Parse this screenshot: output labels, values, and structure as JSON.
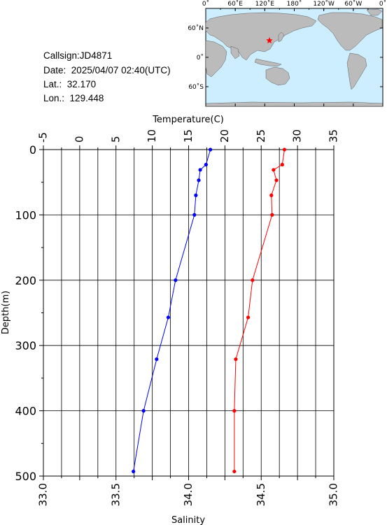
{
  "station": {
    "callsign_label": "Callsign:",
    "callsign": "JD4871",
    "date_label": "Date:",
    "date": "2025/04/07 02:40(UTC)",
    "lat_label": "Lat.:",
    "lat": "32.170",
    "lon_label": "Lon.:",
    "lon": "129.448"
  },
  "map": {
    "lon_ticks": [
      "0˚",
      "60˚E",
      "120˚E",
      "180˚",
      "120˚W",
      "60˚W",
      "0˚"
    ],
    "lat_ticks": [
      "60˚N",
      "0˚",
      "60˚S"
    ],
    "ocean_color": "#cceeff",
    "land_color": "#bbbbbb",
    "marker": "red-star",
    "marker_color": "#ff0000"
  },
  "chart_data": {
    "type": "line",
    "ylabel": "Depth(m)",
    "ylim": [
      500,
      0
    ],
    "yticks": [
      0,
      100,
      200,
      300,
      400,
      500
    ],
    "top_axis": {
      "label": "Temperature(C)",
      "range": [
        -5,
        35
      ],
      "ticks": [
        -5,
        0,
        5,
        10,
        15,
        20,
        25,
        30,
        35
      ]
    },
    "bottom_axis": {
      "label": "Salinity",
      "range": [
        33.0,
        35.0
      ],
      "ticks": [
        "33.0",
        "33.5",
        "34.0",
        "34.5",
        "35.0"
      ]
    },
    "grid": true,
    "series": [
      {
        "color": "#0000ff",
        "axis": "bottom",
        "points": [
          {
            "x": 34.15,
            "y": 0
          },
          {
            "x": 34.12,
            "y": 23
          },
          {
            "x": 34.08,
            "y": 31
          },
          {
            "x": 34.07,
            "y": 47
          },
          {
            "x": 34.05,
            "y": 70
          },
          {
            "x": 34.04,
            "y": 100
          },
          {
            "x": 33.91,
            "y": 200
          },
          {
            "x": 33.86,
            "y": 257
          },
          {
            "x": 33.78,
            "y": 321
          },
          {
            "x": 33.69,
            "y": 400
          },
          {
            "x": 33.62,
            "y": 493
          }
        ]
      },
      {
        "color": "#ff0000",
        "axis": "top",
        "points": [
          {
            "x": 28.2,
            "y": 0
          },
          {
            "x": 27.9,
            "y": 23
          },
          {
            "x": 26.7,
            "y": 31
          },
          {
            "x": 27.1,
            "y": 47
          },
          {
            "x": 26.4,
            "y": 70
          },
          {
            "x": 26.5,
            "y": 100
          },
          {
            "x": 23.8,
            "y": 200
          },
          {
            "x": 23.2,
            "y": 257
          },
          {
            "x": 21.5,
            "y": 321
          },
          {
            "x": 21.3,
            "y": 400
          },
          {
            "x": 21.3,
            "y": 493
          }
        ]
      }
    ]
  }
}
